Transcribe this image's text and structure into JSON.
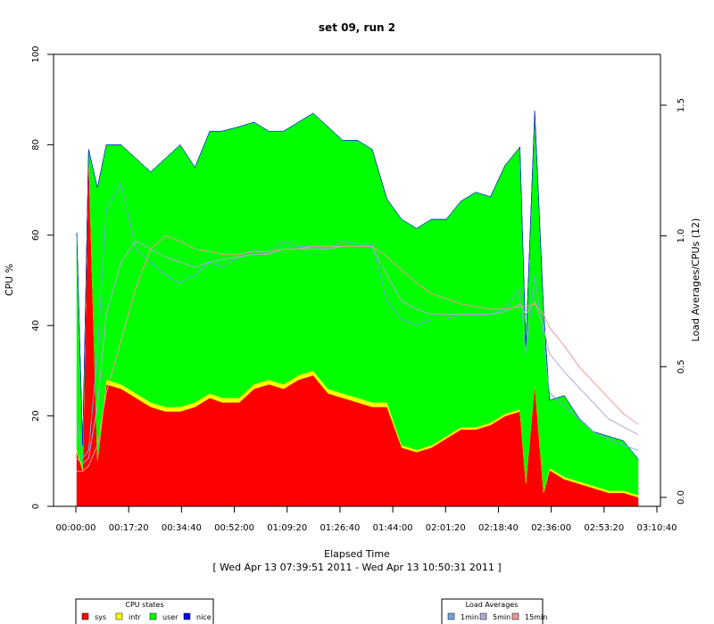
{
  "chart_data": {
    "type": "area",
    "title": "set 09, run 2",
    "xlabel": "Elapsed Time",
    "xsublabel": "[ Wed Apr 13 07:39:51 2011 - Wed Apr 13 10:50:31 2011 ]",
    "ylabel": "CPU %",
    "y2label": "Load Averages/CPUs (12)",
    "ylim": [
      0,
      100
    ],
    "y2lim": [
      -0.05,
      1.65
    ],
    "xlim": [
      0,
      11440
    ],
    "x_ticks": [
      "00:00:00",
      "00:17:20",
      "00:34:40",
      "00:52:00",
      "01:09:20",
      "01:26:40",
      "01:44:00",
      "02:01:20",
      "02:18:40",
      "02:36:00",
      "02:53:20",
      "03:10:40"
    ],
    "y_ticks": [
      "0",
      "20",
      "40",
      "60",
      "80",
      "100"
    ],
    "y2_ticks": [
      "0.0",
      "0.5",
      "1.0",
      "1.5"
    ],
    "x_seconds": [
      0,
      120,
      240,
      420,
      600,
      900,
      1200,
      1500,
      1800,
      2100,
      2400,
      2700,
      2950,
      3300,
      3600,
      3900,
      4200,
      4500,
      4800,
      5100,
      5400,
      5700,
      6000,
      6300,
      6600,
      6900,
      7200,
      7500,
      7800,
      8100,
      8400,
      8700,
      9000,
      9120,
      9300,
      9480,
      9600,
      9900,
      10200,
      10500,
      10800,
      11100,
      11400
    ],
    "series": [
      {
        "name": "sys",
        "color": "#ff0000",
        "values": [
          12,
          8,
          78,
          10,
          27,
          26,
          24,
          22,
          21,
          21,
          22,
          24,
          23,
          23,
          26,
          27,
          26,
          28,
          29,
          25,
          24,
          23,
          22,
          22,
          13,
          12,
          13,
          15,
          17,
          17,
          18,
          20,
          21,
          5,
          27,
          3,
          8,
          6,
          5,
          4,
          3,
          3,
          2
        ]
      },
      {
        "name": "intr",
        "color": "#ffff00",
        "values": [
          0.5,
          0.5,
          1,
          0.5,
          1,
          1,
          1,
          1,
          1,
          1,
          1,
          1,
          1,
          1,
          1,
          1,
          1,
          1,
          1,
          1,
          1,
          1,
          1,
          1,
          0.5,
          0.5,
          0.5,
          0.5,
          0.5,
          0.5,
          0.5,
          0.5,
          0.5,
          0.5,
          0.5,
          0.5,
          0.5,
          0.5,
          0.5,
          0.5,
          0.5,
          0.5,
          0.5
        ]
      },
      {
        "name": "user",
        "color": "#00ff00",
        "values": [
          48,
          5,
          0,
          60,
          52,
          53,
          52,
          51,
          55,
          58,
          52,
          58,
          59,
          60,
          58,
          55,
          56,
          56,
          57,
          58,
          56,
          57,
          56,
          45,
          50,
          49,
          50,
          48,
          50,
          52,
          50,
          55,
          58,
          30,
          60,
          40,
          15,
          18,
          14,
          12,
          12,
          11,
          8
        ]
      },
      {
        "name": "nice",
        "color": "#0000ff",
        "values": [
          0,
          0,
          0,
          0,
          0,
          0,
          0,
          0,
          0,
          0,
          0,
          0,
          0,
          0,
          0,
          0,
          0,
          0,
          0,
          0,
          0,
          0,
          0,
          0,
          0,
          0,
          0,
          0,
          0,
          0,
          0,
          0,
          0,
          0,
          0,
          0,
          0,
          0,
          0,
          0,
          0,
          0,
          0
        ]
      }
    ],
    "load_averages": [
      {
        "name": "1min",
        "color": "#6fa8dc",
        "values": [
          0.3,
          0.15,
          0.18,
          0.55,
          1.1,
          1.2,
          0.95,
          0.9,
          0.85,
          0.82,
          0.85,
          0.9,
          0.88,
          0.92,
          0.95,
          0.93,
          0.98,
          0.96,
          0.96,
          0.95,
          0.98,
          0.97,
          0.97,
          0.75,
          0.68,
          0.66,
          0.68,
          0.68,
          0.7,
          0.7,
          0.7,
          0.72,
          0.8,
          0.55,
          0.85,
          0.6,
          0.4,
          0.35,
          0.3,
          0.25,
          0.22,
          0.2,
          0.18
        ]
      },
      {
        "name": "5min",
        "color": "#b4a7d6",
        "values": [
          0.15,
          0.13,
          0.15,
          0.35,
          0.7,
          0.9,
          0.98,
          0.95,
          0.92,
          0.9,
          0.88,
          0.9,
          0.91,
          0.92,
          0.93,
          0.93,
          0.95,
          0.95,
          0.95,
          0.95,
          0.96,
          0.96,
          0.96,
          0.85,
          0.75,
          0.72,
          0.7,
          0.7,
          0.7,
          0.7,
          0.7,
          0.71,
          0.74,
          0.7,
          0.75,
          0.65,
          0.55,
          0.48,
          0.42,
          0.36,
          0.3,
          0.27,
          0.24
        ]
      },
      {
        "name": "15min",
        "color": "#ea9999",
        "values": [
          0.1,
          0.1,
          0.12,
          0.2,
          0.4,
          0.6,
          0.8,
          0.95,
          1.0,
          0.98,
          0.95,
          0.94,
          0.93,
          0.93,
          0.94,
          0.94,
          0.95,
          0.95,
          0.96,
          0.96,
          0.96,
          0.96,
          0.96,
          0.92,
          0.87,
          0.82,
          0.78,
          0.76,
          0.74,
          0.73,
          0.72,
          0.72,
          0.73,
          0.73,
          0.74,
          0.7,
          0.65,
          0.58,
          0.5,
          0.44,
          0.38,
          0.32,
          0.28
        ]
      }
    ],
    "legend_cpu": {
      "title": "CPU states",
      "items": [
        {
          "name": "sys",
          "color": "#ff0000"
        },
        {
          "name": "intr",
          "color": "#ffff00"
        },
        {
          "name": "user",
          "color": "#00ff00"
        },
        {
          "name": "nice",
          "color": "#0000ff"
        }
      ]
    },
    "legend_load": {
      "title": "Load Averages",
      "items": [
        {
          "name": "1min",
          "color": "#6fa8dc"
        },
        {
          "name": "5min",
          "color": "#b4a7d6"
        },
        {
          "name": "15min",
          "color": "#ea9999"
        }
      ]
    }
  }
}
